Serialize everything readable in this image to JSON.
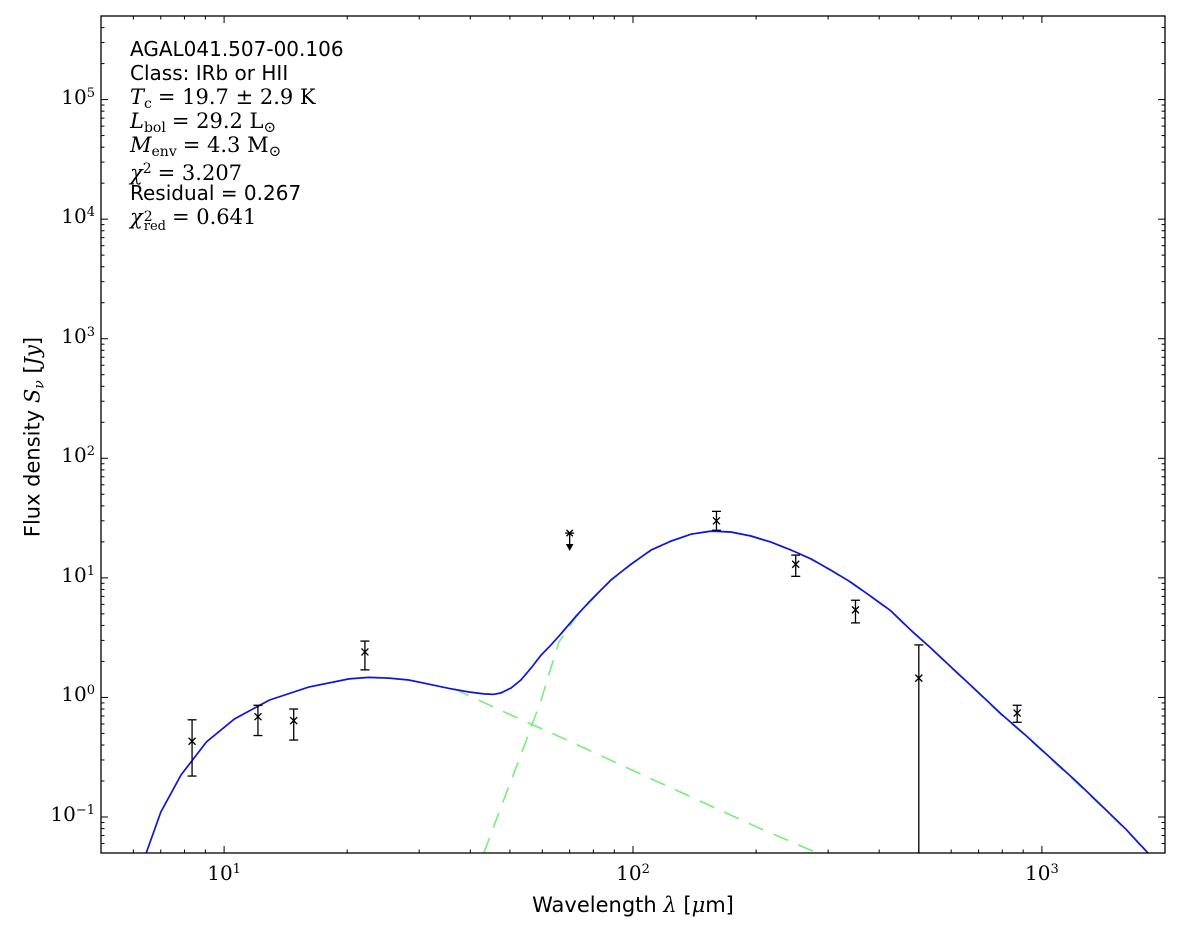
{
  "figure": {
    "annotation": {
      "source_name": "AGAL041.507-00.106",
      "class_line": "Class: IRb or HII",
      "tc": {
        "sym": "T",
        "sub": "c",
        "rest": "= 19.7 ± 2.9 K"
      },
      "lbol": {
        "sym": "L",
        "sub": "bol",
        "rest": "= 29.2",
        "unit": "L",
        "unit_sub": "⊙"
      },
      "menv": {
        "sym": "M",
        "sub": "env",
        "rest": "= 4.3",
        "unit": "M",
        "unit_sub": "⊙"
      },
      "chi2": {
        "sym": "χ",
        "sup": "2",
        "rest": "= 3.207"
      },
      "residual": "Residual = 0.267",
      "chi2red": {
        "sym": "χ",
        "sup": "2",
        "sub": "red",
        "rest": "= 0.641"
      }
    },
    "xlabel": {
      "pre": "Wavelength ",
      "lambda": "λ",
      "mid": " [",
      "mu": "μ",
      "post": "m]"
    },
    "ylabel": {
      "pre": "Flux density ",
      "s": "S",
      "nu": "ν",
      "mid": " [",
      "unit": "Jy",
      "post": "]"
    }
  },
  "chart_data": {
    "type": "scatter",
    "title": "",
    "x_scale": "log",
    "y_scale": "log",
    "xlabel": "Wavelength λ [μm]",
    "ylabel": "Flux density Sν [Jy]",
    "xlim": [
      5,
      2000
    ],
    "ylim": [
      0.05,
      500000
    ],
    "grid": false,
    "legend": false,
    "tick_base": "10",
    "x_tick_exponents": [
      1,
      2,
      3
    ],
    "y_tick_exponents": [
      -1,
      0,
      1,
      2,
      3,
      4,
      5
    ],
    "colors": {
      "model_total": "#1212dd",
      "model_components": "#77ee77",
      "data": "#000000",
      "axes": "#000000",
      "background": "#ffffff"
    },
    "points": [
      {
        "lam": 8.35,
        "flux": 0.43,
        "hi": 0.65,
        "lo": 0.22
      },
      {
        "lam": 12.1,
        "flux": 0.69,
        "hi": 0.86,
        "lo": 0.48
      },
      {
        "lam": 14.8,
        "flux": 0.64,
        "hi": 0.8,
        "lo": 0.44
      },
      {
        "lam": 22.1,
        "flux": 2.4,
        "hi": 2.96,
        "lo": 1.7
      },
      {
        "lam": 70,
        "flux": 23.7,
        "upper_limit": true,
        "limit_to": 18.1
      },
      {
        "lam": 160,
        "flux": 30.0,
        "hi": 36.0,
        "lo": 25.0
      },
      {
        "lam": 250,
        "flux": 13.0,
        "hi": 15.5,
        "lo": 10.3
      },
      {
        "lam": 350,
        "flux": 5.4,
        "hi": 6.5,
        "lo": 4.2
      },
      {
        "lam": 500,
        "flux": 1.45,
        "hi": 2.75,
        "lo": 0.05,
        "lo_cap": false
      },
      {
        "lam": 870,
        "flux": 0.74,
        "hi": 0.86,
        "lo": 0.62
      }
    ],
    "model_total": [
      [
        6.45,
        0.05
      ],
      [
        7.0,
        0.11
      ],
      [
        7.85,
        0.225
      ],
      [
        9.05,
        0.424
      ],
      [
        10.6,
        0.66
      ],
      [
        12.9,
        0.95
      ],
      [
        16.1,
        1.22
      ],
      [
        20.2,
        1.43
      ],
      [
        22.6,
        1.47
      ],
      [
        25.3,
        1.45
      ],
      [
        28.3,
        1.4
      ],
      [
        31.7,
        1.29
      ],
      [
        35.5,
        1.19
      ],
      [
        39.7,
        1.11
      ],
      [
        43.2,
        1.07
      ],
      [
        45.5,
        1.06
      ],
      [
        47.5,
        1.09
      ],
      [
        50.3,
        1.2
      ],
      [
        53.2,
        1.4
      ],
      [
        56.3,
        1.76
      ],
      [
        59.6,
        2.26
      ],
      [
        63.0,
        2.74
      ],
      [
        66.6,
        3.39
      ],
      [
        72.6,
        4.79
      ],
      [
        78.9,
        6.52
      ],
      [
        88.3,
        9.59
      ],
      [
        98.9,
        13.0
      ],
      [
        110.7,
        17.1
      ],
      [
        123.9,
        20.3
      ],
      [
        138.6,
        23.2
      ],
      [
        155.1,
        24.6
      ],
      [
        173.6,
        24.2
      ],
      [
        194.3,
        22.4
      ],
      [
        217.4,
        19.9
      ],
      [
        243.4,
        17.1
      ],
      [
        272.4,
        14.4
      ],
      [
        305,
        11.6
      ],
      [
        341,
        9.2
      ],
      [
        382,
        7.0
      ],
      [
        427,
        5.3
      ],
      [
        478,
        3.66
      ],
      [
        535,
        2.59
      ],
      [
        599,
        1.8
      ],
      [
        690,
        1.15
      ],
      [
        794,
        0.73
      ],
      [
        914,
        0.48
      ],
      [
        1052,
        0.31
      ],
      [
        1211,
        0.2
      ],
      [
        1394,
        0.126
      ],
      [
        1605,
        0.079
      ],
      [
        1817,
        0.05
      ]
    ],
    "cold_component": [
      [
        43.2,
        0.05
      ],
      [
        47.5,
        0.12
      ],
      [
        53.2,
        0.33
      ],
      [
        59.6,
        0.95
      ],
      [
        65.9,
        2.9
      ],
      [
        72.6,
        4.7
      ],
      [
        78.9,
        6.4
      ],
      [
        88.3,
        9.5
      ],
      [
        98.9,
        12.9
      ],
      [
        110.7,
        17.0
      ],
      [
        123.9,
        20.2
      ],
      [
        138.6,
        23.1
      ],
      [
        155.1,
        24.5
      ],
      [
        173.6,
        24.1
      ],
      [
        194.3,
        22.3
      ],
      [
        217.4,
        19.8
      ],
      [
        243.4,
        17.0
      ],
      [
        272.4,
        14.3
      ],
      [
        305,
        11.5
      ],
      [
        341,
        9.1
      ],
      [
        382,
        6.95
      ],
      [
        427,
        5.25
      ],
      [
        478,
        3.63
      ],
      [
        535,
        2.57
      ],
      [
        599,
        1.78
      ],
      [
        690,
        1.14
      ],
      [
        794,
        0.72
      ],
      [
        914,
        0.475
      ],
      [
        1052,
        0.305
      ],
      [
        1211,
        0.196
      ],
      [
        1394,
        0.124
      ],
      [
        1605,
        0.078
      ],
      [
        1817,
        0.0495
      ]
    ],
    "warm_component": [
      [
        36.5,
        1.18
      ],
      [
        50,
        0.72
      ],
      [
        70,
        0.43
      ],
      [
        100,
        0.245
      ],
      [
        140,
        0.145
      ],
      [
        200,
        0.083
      ],
      [
        290,
        0.048
      ]
    ]
  }
}
